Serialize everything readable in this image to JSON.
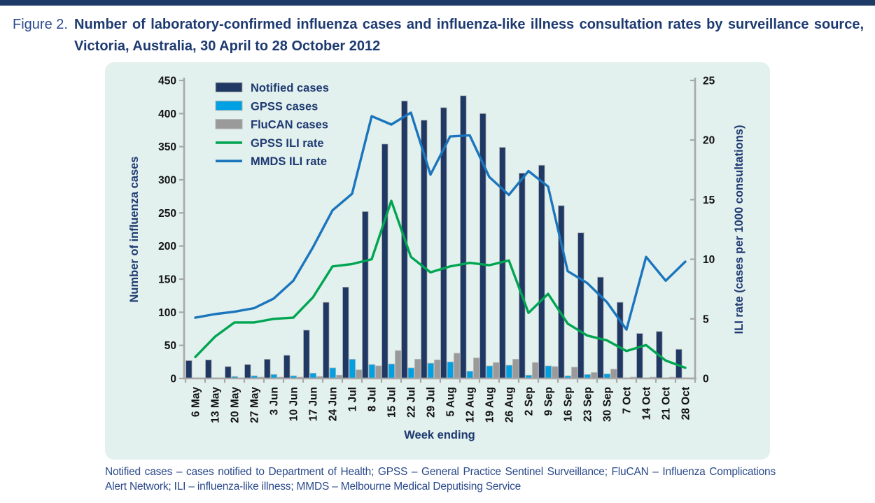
{
  "page": {
    "figure_label": "Figure 2.",
    "title": "Number of laboratory-confirmed influenza cases and influenza-like illness consultation rates by surveillance source, Victoria, Australia, 30 April to 28 October 2012",
    "footnote": "Notified cases – cases notified to Department of Health; GPSS – General Practice Sentinel Surveillance; FluCAN – Influenza Complications Alert Network; ILI – influenza-like illness; MMDS – Melbourne Medical Deputising Service"
  },
  "colors": {
    "top_bar": "#1e3a67",
    "title_text": "#1d3a70",
    "panel_background": "#e2f0ee",
    "axis_line": "#a8a8a8",
    "tick_label": "#111111",
    "axis_title_text": "#1e3a70",
    "legend_text": "#1e3a70",
    "notified_bar": "#1f3864",
    "gpss_bar": "#00a0e3",
    "flucan_bar": "#9a9a9a",
    "gpss_line": "#00a551",
    "mmds_line": "#1b75bc"
  },
  "chart_data": {
    "type": "bar",
    "subtype": "combo bar+line, dual axis",
    "categories": [
      "6 May",
      "13 May",
      "20 May",
      "27 May",
      "3 Jun",
      "10 Jun",
      "17 Jun",
      "24 Jun",
      "1 Jul",
      "8 Jul",
      "15 Jul",
      "22 Jul",
      "29 Jul",
      "5 Aug",
      "12 Aug",
      "19 Aug",
      "26 Aug",
      "2 Sep",
      "9 Sep",
      "16 Sep",
      "23 Sep",
      "30 Sep",
      "7 Oct",
      "14 Oct",
      "21 Oct",
      "28 Oct"
    ],
    "series": [
      {
        "name": "Notified cases",
        "type": "bar",
        "axis": "left",
        "color": "#1f3864",
        "values": [
          27,
          28,
          18,
          21,
          29,
          35,
          73,
          115,
          138,
          252,
          354,
          419,
          390,
          409,
          427,
          400,
          349,
          310,
          322,
          261,
          220,
          153,
          115,
          68,
          71,
          44
        ]
      },
      {
        "name": "GPSS cases",
        "type": "bar",
        "axis": "left",
        "color": "#00a0e3",
        "values": [
          1,
          1,
          3,
          4,
          6,
          4,
          8,
          16,
          29,
          21,
          22,
          16,
          23,
          25,
          11,
          19,
          20,
          5,
          19,
          4,
          6,
          7,
          1,
          1,
          1,
          1
        ]
      },
      {
        "name": "FluCAN cases",
        "type": "bar",
        "axis": "left",
        "color": "#9a9a9a",
        "values": [
          1,
          1,
          1,
          2,
          2,
          2,
          3,
          5,
          13,
          19,
          42,
          29,
          28,
          38,
          31,
          24,
          29,
          24,
          18,
          17,
          9,
          14,
          2,
          2,
          2,
          1
        ]
      },
      {
        "name": "GPSS ILI rate",
        "type": "line",
        "axis": "right",
        "color": "#00a551",
        "values": [
          1.8,
          3.5,
          4.7,
          4.7,
          5.0,
          5.1,
          6.8,
          9.4,
          9.6,
          10.0,
          14.9,
          10.2,
          8.9,
          9.4,
          9.7,
          9.5,
          9.9,
          5.5,
          7.1,
          4.6,
          3.6,
          3.2,
          2.3,
          2.8,
          1.5,
          0.9
        ]
      },
      {
        "name": "MMDS ILI rate",
        "type": "line",
        "axis": "right",
        "color": "#1b75bc",
        "values": [
          5.1,
          5.4,
          5.6,
          5.9,
          6.7,
          8.2,
          11.0,
          14.1,
          15.5,
          22.0,
          21.3,
          22.3,
          17.1,
          20.3,
          20.4,
          16.9,
          15.4,
          17.4,
          16.1,
          9.0,
          8.0,
          6.4,
          4.1,
          10.2,
          8.2,
          9.8
        ]
      }
    ],
    "left_axis": {
      "label": "Number of influenza cases",
      "min": 0,
      "max": 450,
      "step": 50
    },
    "right_axis": {
      "label": "ILI rate (cases per 1000 consultations)",
      "min": 0,
      "max": 25,
      "step": 5
    },
    "x_axis": {
      "label": "Week ending"
    },
    "grid": false,
    "legend_position": "top-left-inside"
  }
}
